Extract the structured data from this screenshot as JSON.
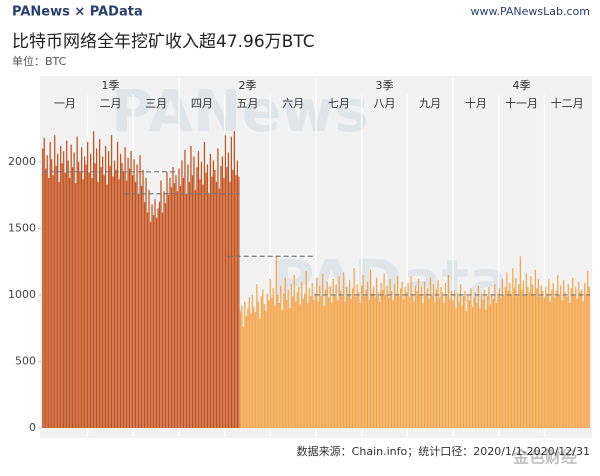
{
  "header": {
    "brand": "PANews × PAData",
    "site": "www.PANewsLab.com"
  },
  "chart_data": {
    "type": "bar",
    "title": "比特币网络全年挖矿收入超47.96万BTC",
    "subtitle": "单位：BTC",
    "source": "数据来源：Chain.info；统计口径：2020/1/1-2020/12/31",
    "watermarks": [
      "PANews",
      "PAData",
      "金色财经"
    ],
    "quarters": [
      "1季",
      "2季",
      "3季",
      "4季"
    ],
    "months": [
      "一月",
      "二月",
      "三月",
      "四月",
      "五月",
      "六月",
      "七月",
      "八月",
      "九月",
      "十月",
      "十一月",
      "十二月"
    ],
    "ylim": [
      0,
      2600
    ],
    "yticks": [
      0,
      500,
      1000,
      1500,
      2000
    ],
    "reference_lines": [
      {
        "value": 1925,
        "start": 0,
        "end": 91
      },
      {
        "value": 1760,
        "start": 55,
        "end": 132
      },
      {
        "value": 1290,
        "start": 124,
        "end": 182
      },
      {
        "value": 1000,
        "start": 182,
        "end": 366
      }
    ],
    "series": [
      {
        "color": "#c4501c",
        "values": [
          2100,
          2180,
          1950,
          2050,
          1880,
          2150,
          2020,
          1900,
          2200,
          1970,
          2060,
          1850,
          2120,
          1990,
          2080,
          1920,
          2160,
          2010,
          1880,
          2130,
          1960,
          2070,
          1840,
          2190,
          2000,
          1930,
          2110,
          1870,
          2040,
          1980,
          2150,
          1920,
          2060,
          1880,
          2230,
          1990,
          2100,
          1850,
          2170,
          1960,
          2040,
          1900,
          2120,
          1830,
          2080,
          1970,
          2200,
          1890,
          2010,
          1940,
          2150,
          1870,
          2060,
          1990,
          1920,
          2110,
          1860,
          2030,
          1950,
          2080,
          1900,
          2020,
          1850,
          1980,
          1760,
          2050,
          1820,
          1940,
          1700,
          1880,
          1620,
          1790,
          1550,
          1680,
          1600,
          1720,
          1580,
          1650,
          1700,
          1860,
          1620,
          1780,
          1690,
          1920,
          1750,
          1880,
          1810,
          1960,
          1840,
          1900,
          1780,
          1950,
          1820,
          2010,
          1880,
          2090,
          1760,
          1980,
          1850,
          2120,
          1900,
          2040,
          1790,
          1960,
          2080,
          1870,
          2000,
          1830,
          2150,
          1920,
          1980,
          1760,
          2060,
          1890,
          2010,
          1940,
          1850,
          2100,
          1800,
          1970,
          2040,
          1880,
          2200,
          1960,
          2070,
          1850,
          2190,
          1940,
          2230,
          1900,
          2010,
          1890
        ]
      },
      {
        "color": "#f4a448",
        "values": [
          880,
          920,
          760,
          950,
          840,
          900,
          980,
          860,
          1000,
          910,
          870,
          1080,
          950,
          820,
          990,
          1040,
          930,
          880,
          1010,
          960,
          1120,
          980,
          1050,
          920,
          1290,
          1000,
          940,
          1070,
          890,
          1010,
          1130,
          960,
          1040,
          900,
          1080,
          990,
          1150,
          950,
          1020,
          1060,
          930,
          1100,
          970,
          1010,
          1180,
          940,
          1050,
          990,
          1090,
          960,
          1010,
          1130,
          950,
          1070,
          990,
          1160,
          920,
          1040,
          1100,
          980,
          1060,
          940,
          1120,
          1000,
          1080,
          960,
          1140,
          1030,
          990,
          1170,
          950,
          1060,
          1010,
          1110,
          970,
          1050,
          1200,
          990,
          1080,
          1020,
          940,
          1070,
          1150,
          990,
          1040,
          1100,
          960,
          1190,
          1010,
          1060,
          980,
          1130,
          1020,
          950,
          1090,
          1040,
          1160,
          1000,
          1070,
          980,
          1120,
          1030,
          960,
          1080,
          1010,
          1140,
          990,
          1050,
          1100,
          970,
          1060,
          1020,
          1090,
          980,
          1140,
          1010,
          950,
          1070,
          1030,
          1120,
          990,
          1060,
          940,
          1100,
          1010,
          1050,
          970,
          1130,
          1000,
          1080,
          950,
          1040,
          1110,
          980,
          1060,
          1020,
          940,
          1090,
          1000,
          1150,
          970,
          1030,
          960,
          1040,
          900,
          1010,
          950,
          1080,
          920,
          990,
          1030,
          880,
          1000,
          960,
          1050,
          910,
          980,
          1020,
          940,
          1070,
          900,
          1010,
          960,
          1040,
          890,
          990,
          1060,
          930,
          1000,
          970,
          1080,
          940,
          1010,
          1050,
          980,
          1120,
          1000,
          1060,
          1170,
          1030,
          1090,
          1010,
          1200,
          1050,
          1130,
          990,
          1080,
          1290,
          1040,
          1110,
          1000,
          1160,
          1060,
          1020,
          1140,
          1080,
          1010,
          1190,
          1050,
          1120,
          990,
          1070,
          1030,
          980,
          1060,
          1010,
          1120,
          950,
          1040,
          1090,
          980,
          1030,
          1150,
          1000,
          1070,
          960,
          1110,
          1020,
          990,
          1080,
          940,
          1050,
          1130,
          1000,
          1060,
          970,
          1100,
          1020,
          1040,
          950,
          1090,
          1010,
          1180,
          1060
        ]
      }
    ]
  }
}
